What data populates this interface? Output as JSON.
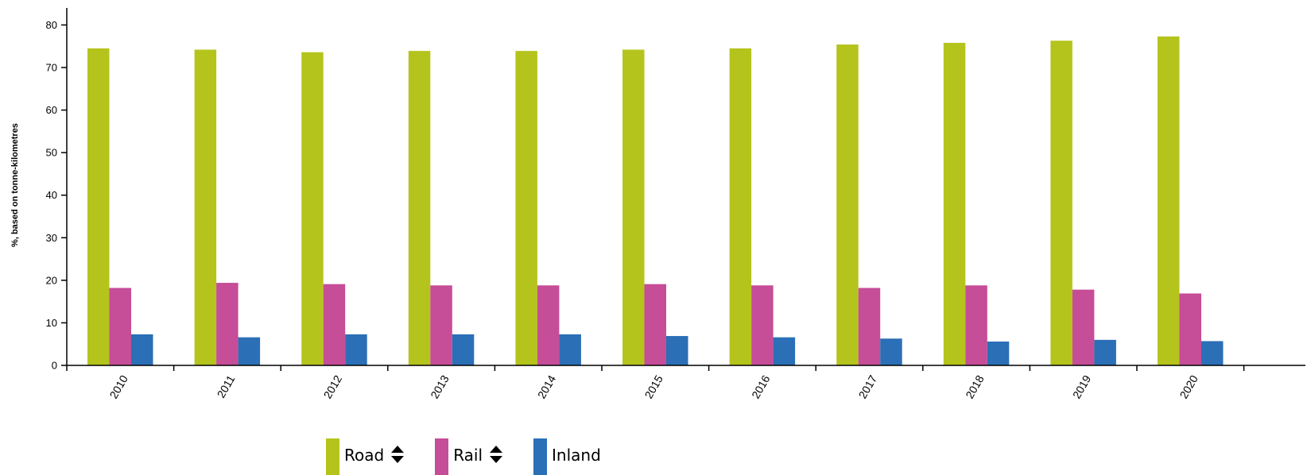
{
  "chart_data": {
    "type": "bar",
    "title": "",
    "xlabel": "",
    "ylabel": "%, based on tonne-kilometres",
    "ylim": [
      0,
      84
    ],
    "yticks": [
      0,
      10,
      20,
      30,
      40,
      50,
      60,
      70,
      80
    ],
    "categories": [
      "2010",
      "2011",
      "2012",
      "2013",
      "2014",
      "2015",
      "2016",
      "2017",
      "2018",
      "2019",
      "2020"
    ],
    "series": [
      {
        "name": "Road",
        "color": "#b5c41d",
        "values": [
          74.5,
          74.2,
          73.6,
          73.9,
          73.9,
          74.2,
          74.5,
          75.4,
          75.8,
          76.3,
          77.3
        ]
      },
      {
        "name": "Rail",
        "color": "#c64d97",
        "values": [
          18.2,
          19.4,
          19.1,
          18.8,
          18.8,
          19.1,
          18.8,
          18.2,
          18.8,
          17.8,
          16.9
        ]
      },
      {
        "name": "Inland",
        "color": "#2b6fb6",
        "values": [
          7.3,
          6.6,
          7.3,
          7.3,
          7.3,
          6.9,
          6.6,
          6.3,
          5.6,
          6.0,
          5.7
        ]
      }
    ],
    "legend_position": "bottom",
    "grid": false
  },
  "legend": {
    "items": [
      {
        "label": "Road",
        "color": "#b5c41d",
        "icon": "sort-icon"
      },
      {
        "label": "Rail",
        "color": "#c64d97",
        "icon": "sort-icon"
      },
      {
        "label": "Inland",
        "color": "#2b6fb6",
        "icon": ""
      }
    ]
  }
}
